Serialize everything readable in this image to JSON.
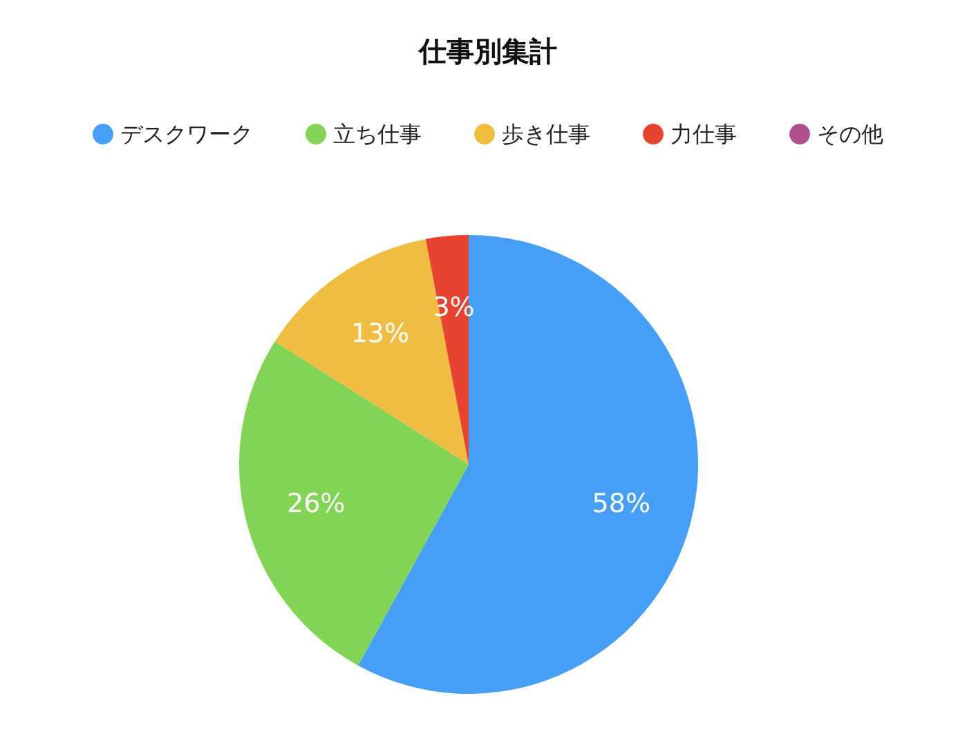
{
  "chart_data": {
    "type": "pie",
    "title": "仕事別集計",
    "categories": [
      "デスクワーク",
      "立ち仕事",
      "歩き仕事",
      "力仕事",
      "その他"
    ],
    "values": [
      58,
      26,
      13,
      3,
      0
    ],
    "colors": [
      "#479ff5",
      "#82d554",
      "#efbd42",
      "#e64330",
      "#b0508c"
    ],
    "value_labels": [
      "58%",
      "26%",
      "13%",
      "3%",
      null
    ],
    "legend": "top"
  }
}
